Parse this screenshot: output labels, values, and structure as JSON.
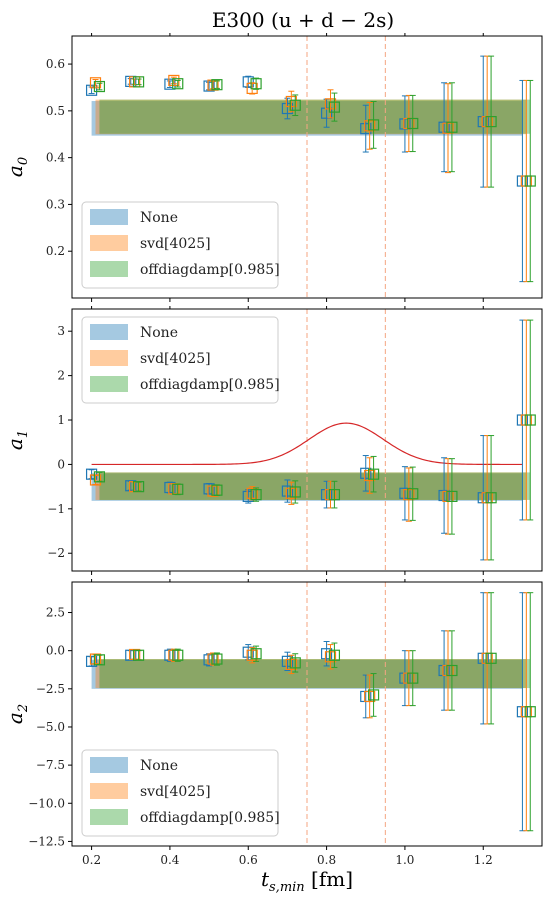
{
  "figure": {
    "title": "E300 (u + d − 2s)",
    "xlabel": "t_s,min [fm]",
    "xlabel_main": "t",
    "xlabel_sub": "s,min",
    "xlabel_unit": " [fm]"
  },
  "colors": {
    "none": "#1f77b4",
    "svd": "#ff7f0e",
    "offdiag": "#2ca02c",
    "weight_curve": "#d62728",
    "vline": "#f4a582"
  },
  "chart_data": [
    {
      "type": "scatter",
      "ylabel": "a0",
      "ylabel_main": "a",
      "ylabel_sub": "0",
      "xlim": [
        0.15,
        1.35
      ],
      "ylim": [
        0.1,
        0.66
      ],
      "x_ticks": [
        0.2,
        0.4,
        0.6,
        0.8,
        1.0,
        1.2
      ],
      "x_tick_labels": [
        "0.2",
        "0.4",
        "0.6",
        "0.8",
        "1.0",
        "1.2"
      ],
      "y_ticks": [
        0.2,
        0.3,
        0.4,
        0.5,
        0.6
      ],
      "y_tick_labels": [
        "0.2",
        "0.3",
        "0.4",
        "0.5",
        "0.6"
      ],
      "vlines": [
        0.75,
        0.95
      ],
      "legend": {
        "position": "lower left",
        "entries": [
          "None",
          "svd[4025]",
          "offdiagdamp[0.985]"
        ]
      },
      "bands": [
        {
          "name": "None",
          "x": [
            0.2,
            1.3
          ],
          "y_low": 0.447,
          "y_high": 0.521
        },
        {
          "name": "svd[4025]",
          "x": [
            0.21,
            1.31
          ],
          "y_low": 0.45,
          "y_high": 0.524
        },
        {
          "name": "offdiagdamp[0.985]",
          "x": [
            0.22,
            1.32
          ],
          "y_low": 0.451,
          "y_high": 0.524
        }
      ],
      "series": [
        {
          "name": "None",
          "x": [
            0.2,
            0.3,
            0.4,
            0.5,
            0.6,
            0.7,
            0.8,
            0.9,
            1.0,
            1.1,
            1.2,
            1.3
          ],
          "y": [
            0.544,
            0.563,
            0.557,
            0.553,
            0.562,
            0.505,
            0.495,
            0.462,
            0.472,
            0.465,
            0.477,
            0.35
          ],
          "yerr": [
            0.007,
            0.006,
            0.007,
            0.008,
            0.012,
            0.022,
            0.03,
            0.05,
            0.06,
            0.095,
            0.14,
            0.215
          ]
        },
        {
          "name": "svd[4025]",
          "x": [
            0.21,
            0.31,
            0.41,
            0.51,
            0.61,
            0.71,
            0.81,
            0.91,
            1.01,
            1.11,
            1.21,
            1.31
          ],
          "y": [
            0.56,
            0.562,
            0.565,
            0.555,
            0.548,
            0.52,
            0.515,
            0.468,
            0.473,
            0.463,
            0.477,
            0.35
          ],
          "yerr": [
            0.007,
            0.006,
            0.007,
            0.008,
            0.012,
            0.022,
            0.03,
            0.05,
            0.06,
            0.095,
            0.14,
            0.215
          ]
        },
        {
          "name": "offdiagdamp[0.985]",
          "x": [
            0.22,
            0.32,
            0.42,
            0.52,
            0.62,
            0.72,
            0.82,
            0.92,
            1.02,
            1.12,
            1.22,
            1.32
          ],
          "y": [
            0.552,
            0.562,
            0.558,
            0.556,
            0.558,
            0.512,
            0.508,
            0.47,
            0.473,
            0.465,
            0.477,
            0.35
          ],
          "yerr": [
            0.007,
            0.006,
            0.007,
            0.008,
            0.012,
            0.022,
            0.03,
            0.05,
            0.06,
            0.095,
            0.14,
            0.215
          ]
        }
      ]
    },
    {
      "type": "scatter",
      "ylabel": "a1",
      "ylabel_main": "a",
      "ylabel_sub": "1",
      "xlim": [
        0.15,
        1.35
      ],
      "ylim": [
        -2.4,
        3.5
      ],
      "x_ticks": [
        0.2,
        0.4,
        0.6,
        0.8,
        1.0,
        1.2
      ],
      "x_tick_labels": [
        "0.2",
        "0.4",
        "0.6",
        "0.8",
        "1.0",
        "1.2"
      ],
      "y_ticks": [
        -2,
        -1,
        0,
        1,
        2,
        3
      ],
      "y_tick_labels": [
        "−2",
        "−1",
        "0",
        "1",
        "2",
        "3"
      ],
      "vlines": [],
      "legend": {
        "position": "upper left",
        "entries": [
          "None",
          "svd[4025]",
          "offdiagdamp[0.985]"
        ]
      },
      "weight_curve": {
        "center": 0.85,
        "width": 0.095,
        "amplitude": 0.93,
        "baseline": 0.0,
        "x": [
          0.2,
          1.3
        ]
      },
      "bands": [
        {
          "name": "None",
          "x": [
            0.2,
            1.3
          ],
          "y_low": -0.82,
          "y_high": -0.2
        },
        {
          "name": "svd[4025]",
          "x": [
            0.21,
            1.31
          ],
          "y_low": -0.8,
          "y_high": -0.18
        },
        {
          "name": "offdiagdamp[0.985]",
          "x": [
            0.22,
            1.32
          ],
          "y_low": -0.8,
          "y_high": -0.18
        }
      ],
      "series": [
        {
          "name": "None",
          "x": [
            0.2,
            0.3,
            0.4,
            0.5,
            0.6,
            0.7,
            0.8,
            0.9,
            1.0,
            1.1,
            1.2,
            1.3
          ],
          "y": [
            -0.22,
            -0.48,
            -0.52,
            -0.55,
            -0.72,
            -0.6,
            -0.68,
            -0.2,
            -0.65,
            -0.7,
            -0.75,
            1.0
          ],
          "yerr": [
            0.1,
            0.1,
            0.12,
            0.12,
            0.15,
            0.25,
            0.3,
            0.4,
            0.6,
            0.85,
            1.4,
            2.25
          ]
        },
        {
          "name": "svd[4025]",
          "x": [
            0.21,
            0.31,
            0.41,
            0.51,
            0.61,
            0.71,
            0.81,
            0.91,
            1.01,
            1.11,
            1.21,
            1.31
          ],
          "y": [
            -0.35,
            -0.5,
            -0.55,
            -0.6,
            -0.65,
            -0.65,
            -0.68,
            -0.25,
            -0.68,
            -0.72,
            -0.75,
            1.0
          ],
          "yerr": [
            0.1,
            0.1,
            0.12,
            0.12,
            0.15,
            0.25,
            0.3,
            0.4,
            0.6,
            0.85,
            1.4,
            2.25
          ]
        },
        {
          "name": "offdiagdamp[0.985]",
          "x": [
            0.22,
            0.32,
            0.42,
            0.52,
            0.62,
            0.72,
            0.82,
            0.92,
            1.02,
            1.12,
            1.22,
            1.32
          ],
          "y": [
            -0.28,
            -0.5,
            -0.56,
            -0.58,
            -0.68,
            -0.62,
            -0.68,
            -0.22,
            -0.66,
            -0.72,
            -0.75,
            1.0
          ],
          "yerr": [
            0.1,
            0.1,
            0.12,
            0.12,
            0.15,
            0.25,
            0.3,
            0.4,
            0.6,
            0.85,
            1.4,
            2.25
          ]
        }
      ]
    },
    {
      "type": "scatter",
      "ylabel": "a2",
      "ylabel_main": "a",
      "ylabel_sub": "2",
      "xlim": [
        0.15,
        1.35
      ],
      "ylim": [
        -12.8,
        4.5
      ],
      "x_ticks": [
        0.2,
        0.4,
        0.6,
        0.8,
        1.0,
        1.2
      ],
      "x_tick_labels": [
        "0.2",
        "0.4",
        "0.6",
        "0.8",
        "1.0",
        "1.2"
      ],
      "y_ticks": [
        -12.5,
        -10.0,
        -7.5,
        -5.0,
        -2.5,
        0.0,
        2.5
      ],
      "y_tick_labels": [
        "−12.5",
        "−10.0",
        "−7.5",
        "−5.0",
        "−2.5",
        "0.0",
        "2.5"
      ],
      "vlines": [],
      "legend": {
        "position": "lower left",
        "entries": [
          "None",
          "svd[4025]",
          "offdiagdamp[0.985]"
        ]
      },
      "bands": [
        {
          "name": "None",
          "x": [
            0.2,
            1.3
          ],
          "y_low": -2.5,
          "y_high": -0.6
        },
        {
          "name": "svd[4025]",
          "x": [
            0.21,
            1.31
          ],
          "y_low": -2.45,
          "y_high": -0.55
        },
        {
          "name": "offdiagdamp[0.985]",
          "x": [
            0.22,
            1.32
          ],
          "y_low": -2.45,
          "y_high": -0.55
        }
      ],
      "series": [
        {
          "name": "None",
          "x": [
            0.2,
            0.3,
            0.4,
            0.5,
            0.6,
            0.7,
            0.8,
            0.9,
            1.0,
            1.1,
            1.2,
            1.3
          ],
          "y": [
            -0.7,
            -0.3,
            -0.3,
            -0.6,
            -0.1,
            -0.7,
            -0.2,
            -3.0,
            -1.8,
            -1.3,
            -0.5,
            -4.0
          ],
          "yerr": [
            0.3,
            0.3,
            0.4,
            0.4,
            0.5,
            0.6,
            0.8,
            1.4,
            1.8,
            2.6,
            4.3,
            7.8
          ]
        },
        {
          "name": "svd[4025]",
          "x": [
            0.21,
            0.31,
            0.41,
            0.51,
            0.61,
            0.71,
            0.81,
            0.91,
            1.01,
            1.11,
            1.21,
            1.31
          ],
          "y": [
            -0.55,
            -0.25,
            -0.3,
            -0.55,
            -0.3,
            -0.9,
            -0.4,
            -3.0,
            -1.8,
            -1.3,
            -0.5,
            -4.0
          ],
          "yerr": [
            0.3,
            0.3,
            0.4,
            0.4,
            0.5,
            0.6,
            0.8,
            1.4,
            1.8,
            2.6,
            4.3,
            7.8
          ]
        },
        {
          "name": "offdiagdamp[0.985]",
          "x": [
            0.22,
            0.32,
            0.42,
            0.52,
            0.62,
            0.72,
            0.82,
            0.92,
            1.02,
            1.12,
            1.22,
            1.32
          ],
          "y": [
            -0.6,
            -0.3,
            -0.3,
            -0.55,
            -0.2,
            -0.8,
            -0.3,
            -2.9,
            -1.8,
            -1.3,
            -0.5,
            -4.0
          ],
          "yerr": [
            0.3,
            0.3,
            0.4,
            0.4,
            0.5,
            0.6,
            0.8,
            1.4,
            1.8,
            2.6,
            4.3,
            7.8
          ]
        }
      ]
    }
  ]
}
